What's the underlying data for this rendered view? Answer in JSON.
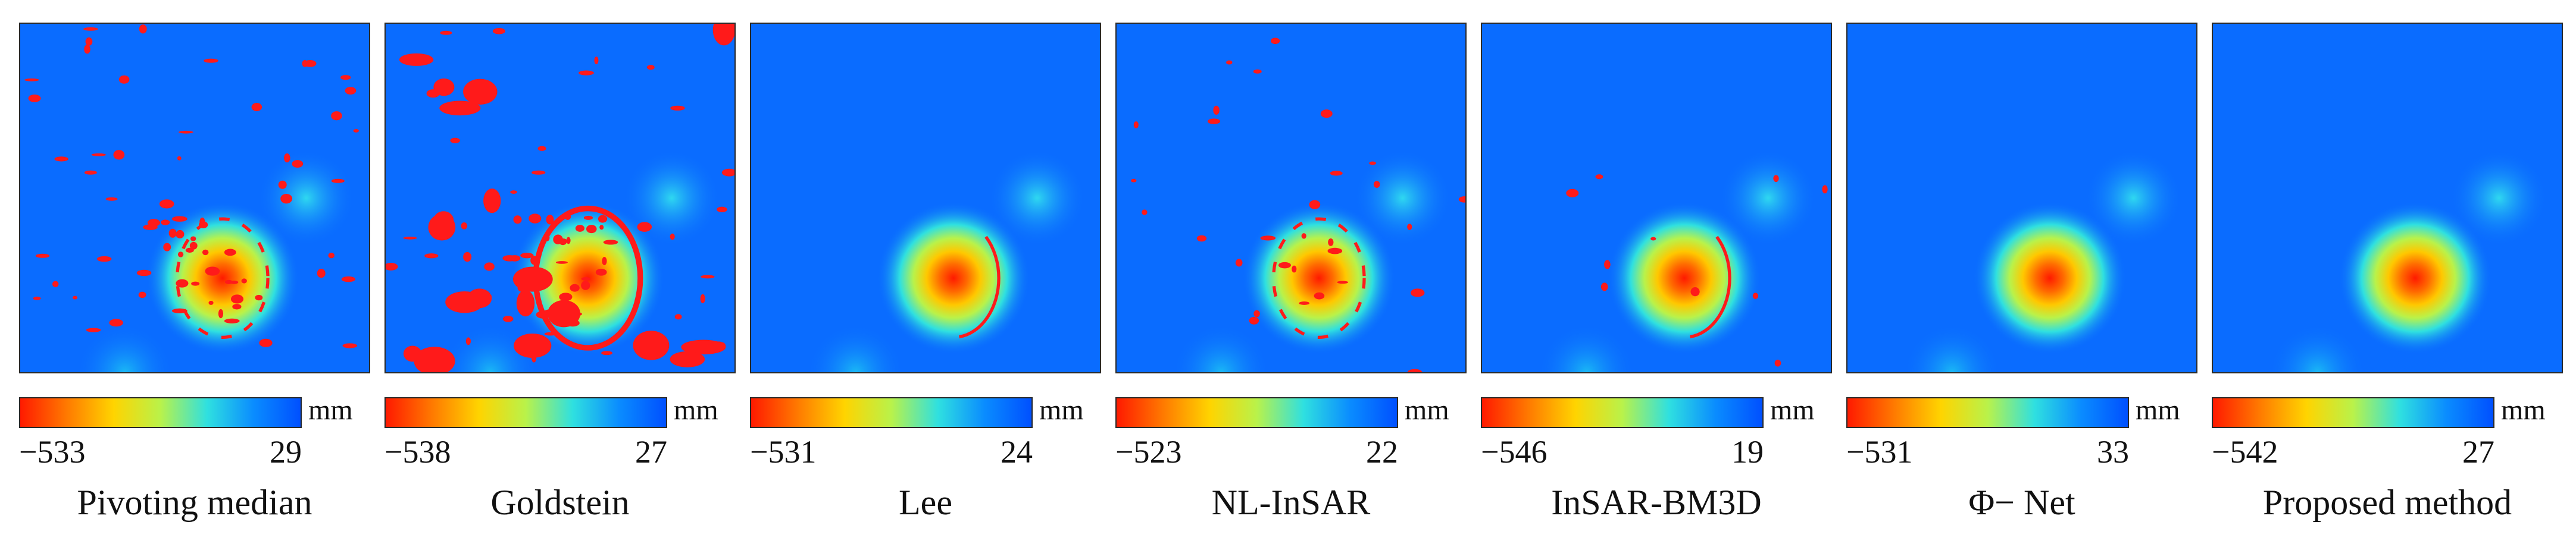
{
  "colormap": {
    "stops": [
      "#ff1a00",
      "#ff7a00",
      "#ffd400",
      "#b9f24a",
      "#2fe0e0",
      "#0a8cff",
      "#0050ff"
    ],
    "background": "#0a6cff",
    "mask_color": "#ff1a1a"
  },
  "panels": [
    {
      "label": "Pivoting median",
      "unit": "mm",
      "min": "−533",
      "max": "29",
      "noise": "high",
      "ring": "partial"
    },
    {
      "label": "Goldstein",
      "unit": "mm",
      "min": "−538",
      "max": "27",
      "noise": "very-high",
      "ring": "strong"
    },
    {
      "label": "Lee",
      "unit": "mm",
      "min": "−531",
      "max": "24",
      "noise": "none",
      "ring": "arc"
    },
    {
      "label": "NL-InSAR",
      "unit": "mm",
      "min": "−523",
      "max": "22",
      "noise": "medium",
      "ring": "partial"
    },
    {
      "label": "InSAR-BM3D",
      "unit": "mm",
      "min": "−546",
      "max": "19",
      "noise": "low",
      "ring": "arc"
    },
    {
      "label": "Φ− Net",
      "unit": "mm",
      "min": "−531",
      "max": "33",
      "noise": "none",
      "ring": "none"
    },
    {
      "label": "Proposed method",
      "unit": "mm",
      "min": "−542",
      "max": "27",
      "noise": "none",
      "ring": "none"
    }
  ]
}
